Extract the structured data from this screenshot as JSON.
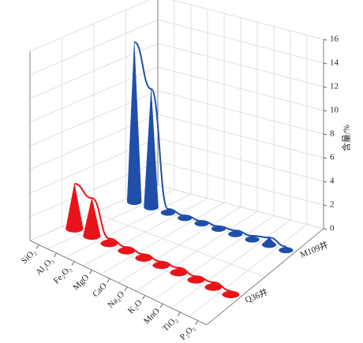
{
  "chart_data": {
    "type": "cone3d",
    "categories": [
      "SiO₂",
      "Al₂O₃",
      "Fe₂O₃",
      "MgO",
      "CaO",
      "Na₂O",
      "K₂O",
      "MnO",
      "TiO₂",
      "P₂O₅"
    ],
    "series": [
      {
        "name": "Q36井",
        "color": "#e8141a",
        "values": [
          3.8,
          3.2,
          0.4,
          0.3,
          0.3,
          0.3,
          0.4,
          0.3,
          0.4,
          0.3
        ]
      },
      {
        "name": "M109井",
        "color": "#1f4fa8",
        "values": [
          13.5,
          10,
          0.3,
          0.2,
          0.2,
          0.2,
          0.3,
          0.3,
          0.6,
          0.3
        ]
      }
    ],
    "y_label": "含量/%",
    "ylim": [
      0,
      16
    ],
    "yticks": [
      0,
      2,
      4,
      6,
      8,
      10,
      12,
      14,
      16
    ],
    "grid": true
  }
}
